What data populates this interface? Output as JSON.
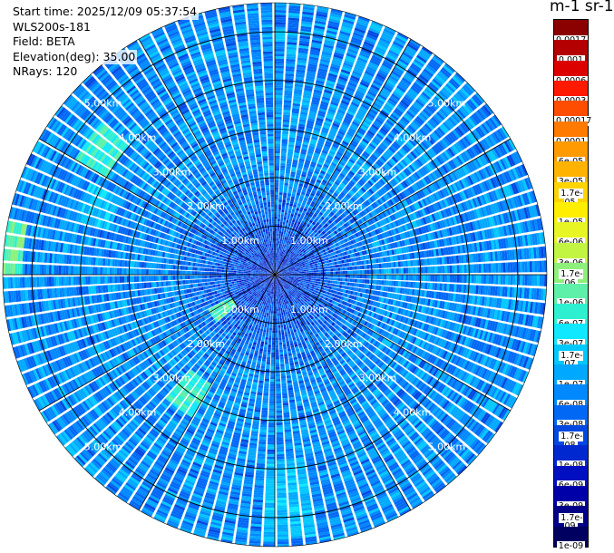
{
  "info": {
    "start_time": "Start time: 2025/12/09 05:37:54",
    "instrument": "WLS200s-181",
    "field": "Field: BETA",
    "elevation": "Elevation(deg): 35.00",
    "nrays": "NRays: 120"
  },
  "colorbar": {
    "title": "m-1 sr-1",
    "labels": [
      "0.0017",
      "0.001",
      "0.0006",
      "0.0003",
      "0.00017",
      "0.0001",
      "6e-05",
      "3e-05",
      "1.7e-05",
      "1e-05",
      "6e-06",
      "3e-06",
      "1.7e-06",
      "1e-06",
      "6e-07",
      "3e-07",
      "1.7e-07",
      "1e-07",
      "6e-08",
      "3e-08",
      "1.7e-08",
      "1e-08",
      "6e-09",
      "3e-09",
      "1.7e-09",
      "1e-09"
    ],
    "colors": [
      "#8b0000",
      "#b40000",
      "#dc0000",
      "#ff1a00",
      "#ff4d00",
      "#ff7a00",
      "#ff9a00",
      "#ffb300",
      "#ffd400",
      "#ffee00",
      "#e8f525",
      "#c2f542",
      "#8ef07a",
      "#5ef0a8",
      "#2ef0d0",
      "#10e8ff",
      "#00c8ff",
      "#00a8ff",
      "#0088ff",
      "#0068f5",
      "#0048e0",
      "#0028d0",
      "#0010c0",
      "#0000a8",
      "#000088",
      "#000060"
    ]
  },
  "chart_data": {
    "type": "heatmap",
    "projection": "polar PPI",
    "field": "BETA",
    "units": "m-1 sr-1",
    "elevation_deg": 35.0,
    "n_rays": 120,
    "range_rings_km": [
      1.0,
      2.0,
      3.0,
      4.0,
      5.0
    ],
    "ring_labels": [
      "1.00km",
      "2.00km",
      "3.00km",
      "4.00km",
      "5.00km"
    ],
    "max_range_km": 5.6,
    "color_scale": "log",
    "color_range": [
      1e-09,
      0.0017
    ],
    "background_level": 6e-08,
    "features": [
      {
        "azimuth_deg": 305,
        "range_km": [
          4.0,
          4.7
        ],
        "level": 1e-06
      },
      {
        "azimuth_deg": 275,
        "range_km": [
          5.2,
          5.6
        ],
        "level": 1.7e-06
      },
      {
        "azimuth_deg": 215,
        "range_km": [
          2.6,
          3.4
        ],
        "level": 1e-06
      },
      {
        "azimuth_deg": 235,
        "range_km": [
          1.0,
          1.5
        ],
        "level": 1.7e-06
      },
      {
        "azimuth_deg": 290,
        "range_km": [
          3.5,
          4.2
        ],
        "level": 3e-07
      },
      {
        "azimuth_deg": 175,
        "range_km": [
          3.8,
          5.4
        ],
        "level": 3e-07
      }
    ]
  }
}
